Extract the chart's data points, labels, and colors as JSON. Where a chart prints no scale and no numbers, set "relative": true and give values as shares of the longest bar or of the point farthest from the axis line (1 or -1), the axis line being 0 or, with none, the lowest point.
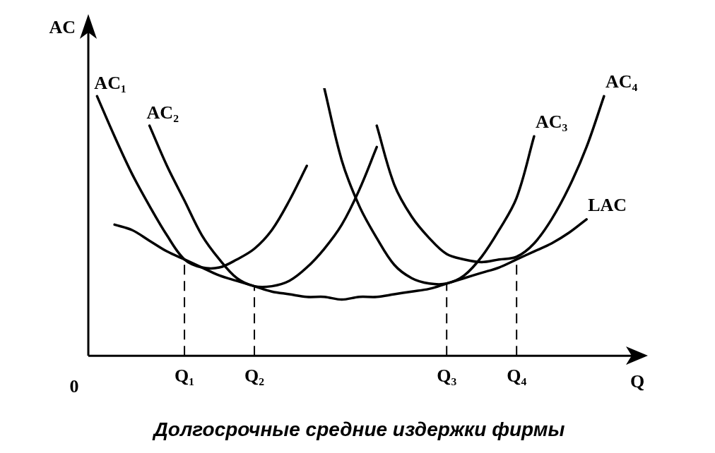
{
  "chart_data": {
    "type": "line",
    "relative": true,
    "title": "Долгосрочные средние издержки фирмы",
    "xlabel": "Q",
    "ylabel": "AC",
    "categories": [
      null,
      null,
      null,
      null,
      null,
      "Q₁",
      null,
      null,
      null,
      "Q₂",
      null,
      null,
      null,
      null,
      null,
      null,
      null,
      null,
      null,
      null,
      "Q₃",
      null,
      null,
      null,
      "Q₄",
      null,
      null,
      null,
      null,
      null,
      null
    ],
    "series": [
      {
        "name": "AC₁",
        "color": "#000000",
        "values": [
          0.97,
          0.82,
          0.68,
          0.56,
          0.45,
          0.36,
          0.33,
          0.33,
          0.36,
          0.4,
          0.47,
          0.58,
          0.71,
          null,
          null,
          null,
          null,
          null,
          null,
          null,
          null,
          null,
          null,
          null,
          null,
          null,
          null,
          null,
          null,
          null,
          null
        ]
      },
      {
        "name": "AC₂",
        "color": "#000000",
        "values": [
          null,
          null,
          null,
          0.86,
          0.71,
          0.58,
          0.45,
          0.36,
          0.29,
          0.26,
          0.26,
          0.28,
          0.33,
          0.4,
          0.49,
          0.62,
          0.78,
          null,
          null,
          null,
          null,
          null,
          null,
          null,
          null,
          null,
          null,
          null,
          null,
          null,
          null
        ]
      },
      {
        "name": "AC₃",
        "color": "#000000",
        "values": [
          null,
          null,
          null,
          null,
          null,
          null,
          null,
          null,
          null,
          null,
          null,
          null,
          null,
          1.0,
          0.73,
          0.56,
          0.44,
          0.34,
          0.29,
          0.27,
          0.27,
          0.3,
          0.37,
          0.47,
          0.59,
          0.82,
          null,
          null,
          null,
          null,
          null
        ]
      },
      {
        "name": "AC₄",
        "color": "#000000",
        "values": [
          null,
          null,
          null,
          null,
          null,
          null,
          null,
          null,
          null,
          null,
          null,
          null,
          null,
          null,
          null,
          null,
          0.86,
          0.64,
          0.52,
          0.44,
          0.38,
          0.36,
          0.35,
          0.36,
          0.37,
          0.42,
          0.51,
          0.63,
          0.78,
          0.97,
          null
        ]
      },
      {
        "name": "LAC",
        "color": "#000000",
        "values": [
          null,
          0.49,
          0.47,
          0.43,
          0.39,
          0.36,
          0.33,
          0.3,
          0.28,
          0.26,
          0.24,
          0.23,
          0.22,
          0.22,
          0.21,
          0.22,
          0.22,
          0.23,
          0.24,
          0.25,
          0.27,
          0.29,
          0.31,
          0.33,
          0.36,
          0.39,
          0.42,
          0.46,
          0.51,
          null,
          null
        ]
      }
    ],
    "ref_lines": [
      {
        "axis": "x",
        "value": "Q₁",
        "line_style": "dashed"
      },
      {
        "axis": "x",
        "value": "Q₂",
        "line_style": "dashed"
      },
      {
        "axis": "x",
        "value": "Q₃",
        "line_style": "dashed"
      },
      {
        "axis": "x",
        "value": "Q₄",
        "line_style": "dashed"
      }
    ],
    "annotations": [
      "0"
    ],
    "legend": false,
    "grid": false,
    "marker": "none",
    "line_style": "solid"
  }
}
